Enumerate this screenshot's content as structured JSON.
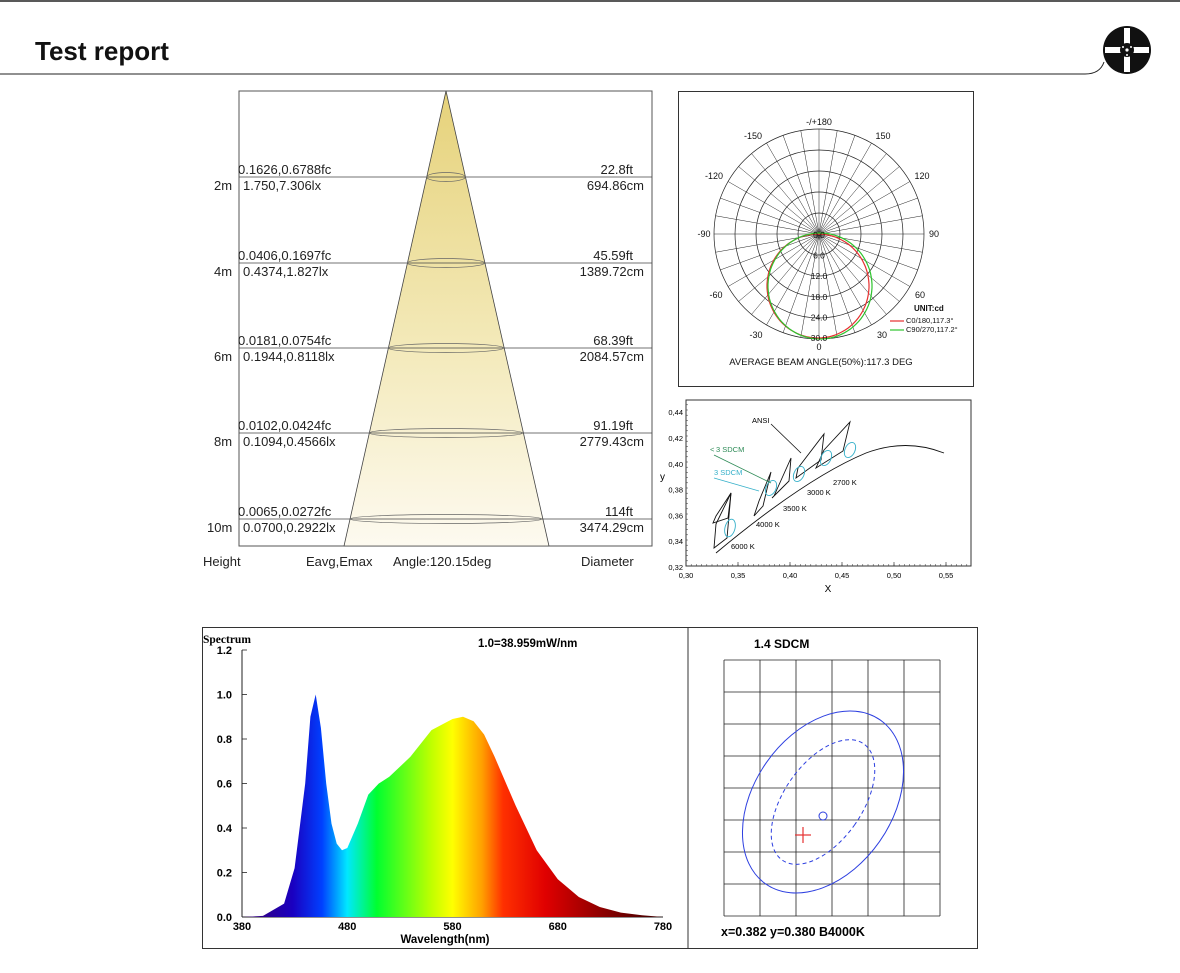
{
  "header": {
    "title": "Test report"
  },
  "cone": {
    "heights": [
      "2m",
      "4m",
      "6m",
      "8m",
      "10m"
    ],
    "illum_fc": [
      "0.1626,0.6788fc",
      "0.0406,0.1697fc",
      "0.0181,0.0754fc",
      "0.0102,0.0424fc",
      "0.0065,0.0272fc"
    ],
    "illum_lx": [
      "1.750,7.306lx",
      "0.4374,1.827lx",
      "0.1944,0.8118lx",
      "0.1094,0.4566lx",
      "0.0700,0.2922lx"
    ],
    "diam_ft": [
      "22.8ft",
      "45.59ft",
      "68.39ft",
      "91.19ft",
      "114ft"
    ],
    "diam_cm": [
      "694.86cm",
      "1389.72cm",
      "2084.57cm",
      "2779.43cm",
      "3474.29cm"
    ],
    "footer": {
      "height": "Height",
      "eavg": "Eavg,Emax",
      "angle": "Angle:120.15deg",
      "diameter": "Diameter"
    }
  },
  "polar": {
    "angle_labels": [
      "-/+180",
      "-150",
      "150",
      "-120",
      "120",
      "-90",
      "90",
      "-60",
      "60",
      "-30",
      "30",
      "0"
    ],
    "radial_labels": [
      "0.0",
      "6.0",
      "12.0",
      "18.0",
      "24.0",
      "30.0"
    ],
    "unit": "UNIT:cd",
    "legend": [
      "C0/180,117.3°",
      "C90/270,117.2°"
    ],
    "caption": "AVERAGE BEAM ANGLE(50%):117.3 DEG",
    "colors": {
      "c0": "#e53030",
      "c90": "#2ec42e"
    }
  },
  "cie": {
    "x_ticks": [
      "0,30",
      "0,35",
      "0,40",
      "0,45",
      "0,50",
      "0,55"
    ],
    "y_ticks": [
      "0,32",
      "0,34",
      "0,36",
      "0,38",
      "0,40",
      "0,42",
      "0,44"
    ],
    "xlabel": "X",
    "ylabel": "y",
    "labels": {
      "ansi": "ANSI",
      "sdcm3a": "3 SDCM",
      "sdcm3a_prefix": "<",
      "sdcm3b": "3 SDCM"
    },
    "cct_labels": [
      "6000 K",
      "4000 K",
      "3500 K",
      "3000 K",
      "2700 K"
    ]
  },
  "spectrum": {
    "label": "Spectrum",
    "scale_note": "1.0=38.959mW/nm",
    "xlabel": "Wavelength(nm)",
    "x_ticks": [
      "380",
      "480",
      "580",
      "680",
      "780"
    ],
    "y_ticks": [
      "0.0",
      "0.2",
      "0.4",
      "0.6",
      "0.8",
      "1.0",
      "1.2"
    ]
  },
  "chart_data": {
    "type": "area",
    "title": "",
    "xlabel": "Wavelength(nm)",
    "ylabel": "Spectrum",
    "xlim": [
      380,
      780
    ],
    "ylim": [
      0,
      1.2
    ],
    "x": [
      380,
      400,
      420,
      430,
      440,
      445,
      450,
      455,
      460,
      465,
      470,
      475,
      480,
      490,
      500,
      510,
      520,
      540,
      560,
      580,
      590,
      600,
      610,
      620,
      640,
      660,
      680,
      700,
      720,
      740,
      760,
      780
    ],
    "values": [
      0.0,
      0.005,
      0.06,
      0.22,
      0.6,
      0.9,
      1.0,
      0.85,
      0.6,
      0.42,
      0.33,
      0.3,
      0.31,
      0.42,
      0.55,
      0.6,
      0.63,
      0.72,
      0.84,
      0.89,
      0.9,
      0.88,
      0.82,
      0.72,
      0.5,
      0.3,
      0.17,
      0.09,
      0.045,
      0.02,
      0.008,
      0.0
    ]
  },
  "sdcm": {
    "title": "1.4 SDCM",
    "footer": "x=0.382 y=0.380 B4000K"
  }
}
